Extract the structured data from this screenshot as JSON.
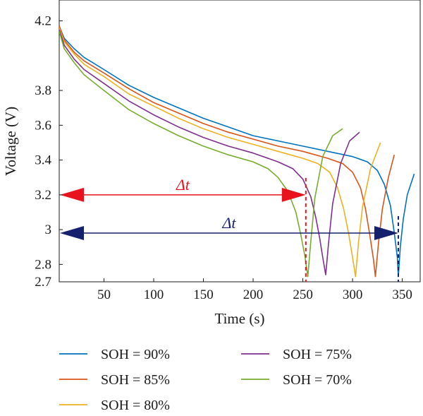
{
  "chart_data": {
    "type": "line",
    "title": "",
    "xlabel": "Time (s)",
    "ylabel": "Voltage (V)",
    "xlim": [
      5,
      368
    ],
    "ylim": [
      2.7,
      4.32
    ],
    "x_ticks": [
      50,
      100,
      150,
      200,
      250,
      300,
      350
    ],
    "y_ticks": [
      2.7,
      2.8,
      3,
      3.2,
      3.4,
      3.6,
      3.8,
      4.2
    ],
    "x_tick_labels": [
      "50",
      "100",
      "150",
      "200",
      "250",
      "300",
      "350"
    ],
    "y_tick_labels": [
      "2.7",
      "2.8",
      "3",
      "3.2",
      "3.4",
      "3.6",
      "3.8",
      "4.2"
    ],
    "grid": false,
    "legend_position": "bottom",
    "series": [
      {
        "name": "SOH = 90%",
        "color": "#0072BD",
        "points": [
          [
            5,
            4.17
          ],
          [
            10,
            4.1
          ],
          [
            20,
            4.04
          ],
          [
            30,
            3.99
          ],
          [
            50,
            3.92
          ],
          [
            75,
            3.83
          ],
          [
            100,
            3.76
          ],
          [
            125,
            3.7
          ],
          [
            150,
            3.64
          ],
          [
            175,
            3.59
          ],
          [
            200,
            3.54
          ],
          [
            225,
            3.51
          ],
          [
            250,
            3.48
          ],
          [
            275,
            3.45
          ],
          [
            300,
            3.42
          ],
          [
            315,
            3.39
          ],
          [
            325,
            3.34
          ],
          [
            332,
            3.26
          ],
          [
            338,
            3.14
          ],
          [
            342,
            2.98
          ],
          [
            345,
            2.84
          ],
          [
            346,
            2.73
          ],
          [
            348,
            2.9
          ],
          [
            351,
            3.06
          ],
          [
            355,
            3.2
          ],
          [
            362,
            3.32
          ]
        ]
      },
      {
        "name": "SOH = 85%",
        "color": "#D95319",
        "points": [
          [
            5,
            4.17
          ],
          [
            10,
            4.09
          ],
          [
            20,
            4.02
          ],
          [
            30,
            3.97
          ],
          [
            50,
            3.9
          ],
          [
            75,
            3.81
          ],
          [
            100,
            3.73
          ],
          [
            125,
            3.67
          ],
          [
            150,
            3.61
          ],
          [
            175,
            3.56
          ],
          [
            200,
            3.52
          ],
          [
            225,
            3.48
          ],
          [
            250,
            3.45
          ],
          [
            275,
            3.41
          ],
          [
            290,
            3.38
          ],
          [
            300,
            3.33
          ],
          [
            308,
            3.24
          ],
          [
            313,
            3.12
          ],
          [
            317,
            2.98
          ],
          [
            321,
            2.83
          ],
          [
            323,
            2.73
          ],
          [
            326,
            2.92
          ],
          [
            330,
            3.12
          ],
          [
            336,
            3.3
          ],
          [
            342,
            3.43
          ]
        ]
      },
      {
        "name": "SOH = 80%",
        "color": "#EDB120",
        "points": [
          [
            5,
            4.16
          ],
          [
            10,
            4.08
          ],
          [
            20,
            4.01
          ],
          [
            30,
            3.95
          ],
          [
            50,
            3.88
          ],
          [
            75,
            3.78
          ],
          [
            100,
            3.71
          ],
          [
            125,
            3.64
          ],
          [
            150,
            3.58
          ],
          [
            175,
            3.53
          ],
          [
            200,
            3.49
          ],
          [
            225,
            3.45
          ],
          [
            250,
            3.41
          ],
          [
            265,
            3.38
          ],
          [
            277,
            3.33
          ],
          [
            285,
            3.24
          ],
          [
            291,
            3.12
          ],
          [
            296,
            2.98
          ],
          [
            300,
            2.84
          ],
          [
            303,
            2.73
          ],
          [
            306,
            2.93
          ],
          [
            310,
            3.13
          ],
          [
            318,
            3.35
          ],
          [
            328,
            3.5
          ]
        ]
      },
      {
        "name": "SOH = 75%",
        "color": "#7E2F8E",
        "points": [
          [
            5,
            4.15
          ],
          [
            10,
            4.06
          ],
          [
            20,
            3.98
          ],
          [
            30,
            3.92
          ],
          [
            50,
            3.84
          ],
          [
            75,
            3.74
          ],
          [
            100,
            3.66
          ],
          [
            125,
            3.59
          ],
          [
            150,
            3.53
          ],
          [
            175,
            3.48
          ],
          [
            200,
            3.44
          ],
          [
            225,
            3.39
          ],
          [
            240,
            3.35
          ],
          [
            250,
            3.29
          ],
          [
            258,
            3.19
          ],
          [
            263,
            3.07
          ],
          [
            267,
            2.95
          ],
          [
            270,
            2.84
          ],
          [
            273,
            2.74
          ],
          [
            276,
            2.93
          ],
          [
            280,
            3.15
          ],
          [
            288,
            3.38
          ],
          [
            297,
            3.51
          ],
          [
            307,
            3.56
          ]
        ]
      },
      {
        "name": "SOH = 70%",
        "color": "#77AC30",
        "points": [
          [
            5,
            4.14
          ],
          [
            10,
            4.04
          ],
          [
            20,
            3.96
          ],
          [
            30,
            3.89
          ],
          [
            50,
            3.8
          ],
          [
            75,
            3.69
          ],
          [
            100,
            3.61
          ],
          [
            125,
            3.54
          ],
          [
            150,
            3.48
          ],
          [
            175,
            3.43
          ],
          [
            200,
            3.39
          ],
          [
            215,
            3.35
          ],
          [
            225,
            3.3
          ],
          [
            235,
            3.22
          ],
          [
            243,
            3.1
          ],
          [
            248,
            2.97
          ],
          [
            252,
            2.85
          ],
          [
            255,
            2.73
          ],
          [
            258,
            2.93
          ],
          [
            262,
            3.18
          ],
          [
            270,
            3.42
          ],
          [
            280,
            3.54
          ],
          [
            290,
            3.58
          ]
        ]
      }
    ],
    "annotations": [
      {
        "label": "Δt",
        "color": "#E8131C",
        "y": 3.2,
        "x_start": 5,
        "x_end": 253,
        "marker_x": 253
      },
      {
        "label": "Δt",
        "color": "#16216E",
        "y": 2.98,
        "x_start": 5,
        "x_end": 346,
        "marker_x": 346
      }
    ]
  }
}
